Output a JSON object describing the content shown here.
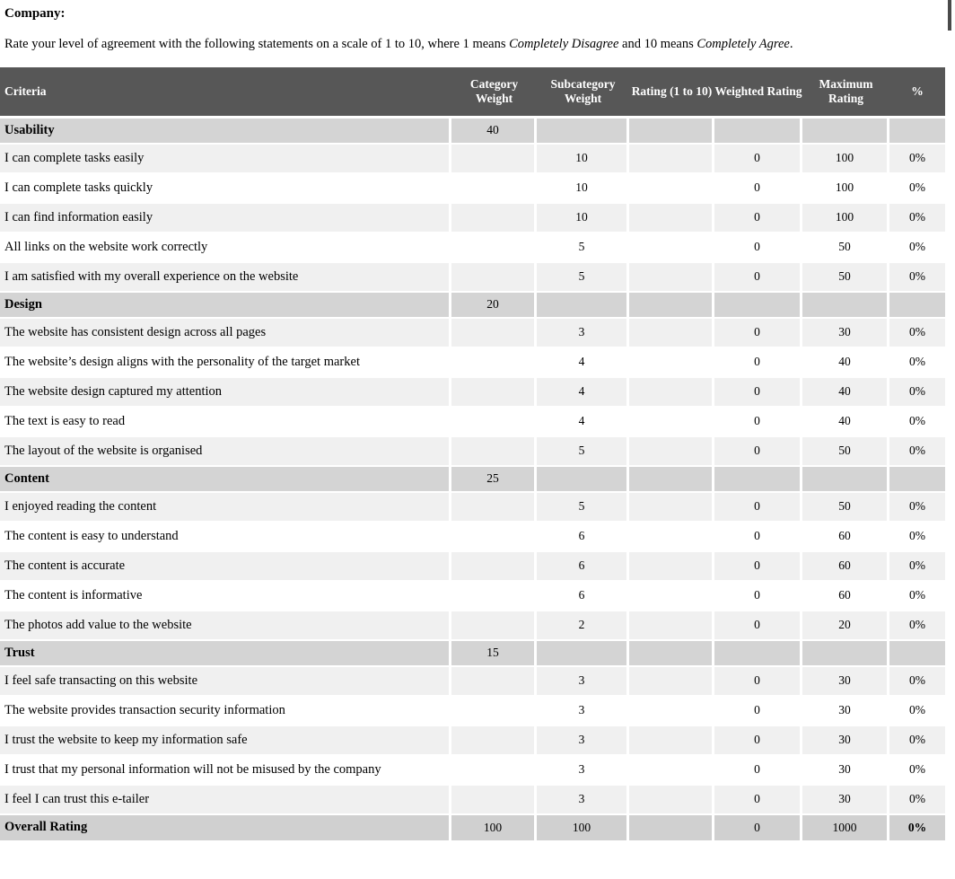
{
  "page": {
    "company_label": "Company:",
    "instruction": {
      "prefix": "Rate your level of agreement with the following statements on a scale of 1 to 10, where 1 means ",
      "italic_disagree": "Completely Disagree",
      "middle": " and 10 means ",
      "italic_agree": "Completely Agree",
      "suffix": "."
    }
  },
  "colors": {
    "header_bg": "#575757",
    "header_text": "#ffffff",
    "category_row_bg": "#d4d4d4",
    "item_row_alt_bg": "#f0f0f0",
    "item_row_bg": "#ffffff",
    "overall_row_bg": "#d0d0d0"
  },
  "table": {
    "columns": [
      {
        "key": "criteria",
        "label": "Criteria"
      },
      {
        "key": "category_weight",
        "label": "Category Weight"
      },
      {
        "key": "subcategory_weight",
        "label": "Subcategory Weight"
      },
      {
        "key": "rating",
        "label": "Rating (1 to 10)"
      },
      {
        "key": "weighted_rating",
        "label": "Weighted Rating"
      },
      {
        "key": "maximum_rating",
        "label": "Maximum Rating"
      },
      {
        "key": "percent",
        "label": "%"
      }
    ],
    "rows": [
      {
        "type": "category",
        "criteria": "Usability",
        "category_weight": "40",
        "subcategory_weight": "",
        "rating": "",
        "weighted_rating": "",
        "maximum_rating": "",
        "percent": ""
      },
      {
        "type": "item",
        "criteria": "I can complete tasks easily",
        "category_weight": "",
        "subcategory_weight": "10",
        "rating": "",
        "weighted_rating": "0",
        "maximum_rating": "100",
        "percent": "0%"
      },
      {
        "type": "item",
        "criteria": "I can complete tasks quickly",
        "category_weight": "",
        "subcategory_weight": "10",
        "rating": "",
        "weighted_rating": "0",
        "maximum_rating": "100",
        "percent": "0%"
      },
      {
        "type": "item",
        "criteria": "I can find information easily",
        "category_weight": "",
        "subcategory_weight": "10",
        "rating": "",
        "weighted_rating": "0",
        "maximum_rating": "100",
        "percent": "0%"
      },
      {
        "type": "item",
        "criteria": "All links on the website work correctly",
        "category_weight": "",
        "subcategory_weight": "5",
        "rating": "",
        "weighted_rating": "0",
        "maximum_rating": "50",
        "percent": "0%"
      },
      {
        "type": "item",
        "criteria": "I am satisfied with my overall experience on the website",
        "category_weight": "",
        "subcategory_weight": "5",
        "rating": "",
        "weighted_rating": "0",
        "maximum_rating": "50",
        "percent": "0%"
      },
      {
        "type": "category",
        "criteria": "Design",
        "category_weight": "20",
        "subcategory_weight": "",
        "rating": "",
        "weighted_rating": "",
        "maximum_rating": "",
        "percent": ""
      },
      {
        "type": "item",
        "criteria": "The website has consistent design across all pages",
        "category_weight": "",
        "subcategory_weight": "3",
        "rating": "",
        "weighted_rating": "0",
        "maximum_rating": "30",
        "percent": "0%"
      },
      {
        "type": "item",
        "criteria": "The website’s design aligns with the personality of the target market",
        "category_weight": "",
        "subcategory_weight": "4",
        "rating": "",
        "weighted_rating": "0",
        "maximum_rating": "40",
        "percent": "0%"
      },
      {
        "type": "item",
        "criteria": "The website design captured my attention",
        "category_weight": "",
        "subcategory_weight": "4",
        "rating": "",
        "weighted_rating": "0",
        "maximum_rating": "40",
        "percent": "0%"
      },
      {
        "type": "item",
        "criteria": "The text is easy to read",
        "category_weight": "",
        "subcategory_weight": "4",
        "rating": "",
        "weighted_rating": "0",
        "maximum_rating": "40",
        "percent": "0%"
      },
      {
        "type": "item",
        "criteria": "The layout of the website is organised",
        "category_weight": "",
        "subcategory_weight": "5",
        "rating": "",
        "weighted_rating": "0",
        "maximum_rating": "50",
        "percent": "0%"
      },
      {
        "type": "category",
        "criteria": "Content",
        "category_weight": "25",
        "subcategory_weight": "",
        "rating": "",
        "weighted_rating": "",
        "maximum_rating": "",
        "percent": ""
      },
      {
        "type": "item",
        "criteria": "I enjoyed reading the content",
        "category_weight": "",
        "subcategory_weight": "5",
        "rating": "",
        "weighted_rating": "0",
        "maximum_rating": "50",
        "percent": "0%"
      },
      {
        "type": "item",
        "criteria": "The content is easy to understand",
        "category_weight": "",
        "subcategory_weight": "6",
        "rating": "",
        "weighted_rating": "0",
        "maximum_rating": "60",
        "percent": "0%"
      },
      {
        "type": "item",
        "criteria": "The content is accurate",
        "category_weight": "",
        "subcategory_weight": "6",
        "rating": "",
        "weighted_rating": "0",
        "maximum_rating": "60",
        "percent": "0%"
      },
      {
        "type": "item",
        "criteria": "The content is informative",
        "category_weight": "",
        "subcategory_weight": "6",
        "rating": "",
        "weighted_rating": "0",
        "maximum_rating": "60",
        "percent": "0%"
      },
      {
        "type": "item",
        "criteria": "The photos add value to the website",
        "category_weight": "",
        "subcategory_weight": "2",
        "rating": "",
        "weighted_rating": "0",
        "maximum_rating": "20",
        "percent": "0%"
      },
      {
        "type": "category",
        "criteria": "Trust",
        "category_weight": "15",
        "subcategory_weight": "",
        "rating": "",
        "weighted_rating": "",
        "maximum_rating": "",
        "percent": ""
      },
      {
        "type": "item",
        "criteria": "I feel safe transacting on this website",
        "category_weight": "",
        "subcategory_weight": "3",
        "rating": "",
        "weighted_rating": "0",
        "maximum_rating": "30",
        "percent": "0%"
      },
      {
        "type": "item",
        "criteria": "The website provides transaction security information",
        "category_weight": "",
        "subcategory_weight": "3",
        "rating": "",
        "weighted_rating": "0",
        "maximum_rating": "30",
        "percent": "0%"
      },
      {
        "type": "item",
        "criteria": "I trust the website to keep my information safe",
        "category_weight": "",
        "subcategory_weight": "3",
        "rating": "",
        "weighted_rating": "0",
        "maximum_rating": "30",
        "percent": "0%"
      },
      {
        "type": "item",
        "criteria": "I trust that my personal information will not be misused by the company",
        "category_weight": "",
        "subcategory_weight": "3",
        "rating": "",
        "weighted_rating": "0",
        "maximum_rating": "30",
        "percent": "0%"
      },
      {
        "type": "item",
        "criteria": "I feel I can trust this e-tailer",
        "category_weight": "",
        "subcategory_weight": "3",
        "rating": "",
        "weighted_rating": "0",
        "maximum_rating": "30",
        "percent": "0%"
      },
      {
        "type": "overall",
        "criteria": "Overall Rating",
        "category_weight": "100",
        "subcategory_weight": "100",
        "rating": "",
        "weighted_rating": "0",
        "maximum_rating": "1000",
        "percent": "0%"
      }
    ]
  }
}
